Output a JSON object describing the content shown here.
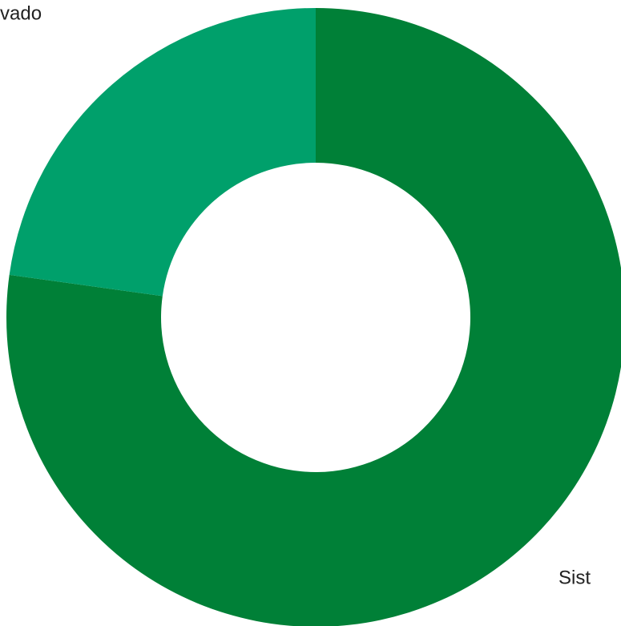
{
  "chart_data": {
    "type": "donut",
    "categories": [
      "Sist",
      "vado"
    ],
    "values": [
      77.2,
      22.8
    ],
    "colors": [
      "#008037",
      "#00a06b"
    ]
  }
}
